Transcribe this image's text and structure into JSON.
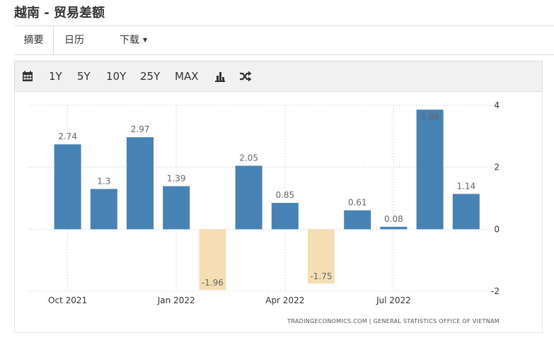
{
  "page": {
    "title": "越南 - 贸易差额"
  },
  "tabs": {
    "summary": "摘要",
    "calendar": "日历",
    "download": "下载"
  },
  "toolbar": {
    "ranges": [
      "1Y",
      "5Y",
      "10Y",
      "25Y",
      "MAX"
    ],
    "icons": [
      "calendar-icon",
      "bar-chart-icon",
      "shuffle-icon"
    ]
  },
  "colors": {
    "positive_bar": "#4682b4",
    "negative_bar": "#f5deb3"
  },
  "chart_data": {
    "type": "bar",
    "title": "",
    "categories": [
      "Oct 2021",
      "Nov 2021",
      "Dec 2021",
      "Jan 2022",
      "Feb 2022",
      "Mar 2022",
      "Apr 2022",
      "May 2022",
      "Jun 2022",
      "Jul 2022",
      "Aug 2022",
      "Sep 2022"
    ],
    "values": [
      2.74,
      1.3,
      2.97,
      1.39,
      -1.96,
      2.05,
      0.85,
      -1.75,
      0.61,
      0.08,
      3.86,
      1.14
    ],
    "x_tick_labels": [
      "Oct 2021",
      "Jan 2022",
      "Apr 2022",
      "Jul 2022"
    ],
    "y_ticks": [
      4,
      2,
      0,
      -2
    ],
    "ylim": [
      -2,
      4
    ],
    "xlabel": "",
    "ylabel": "",
    "grid": true,
    "y_axis_side": "right",
    "source": "TRADINGECONOMICS.COM | GENERAL STATISTICS OFFICE OF VIETNAM"
  }
}
